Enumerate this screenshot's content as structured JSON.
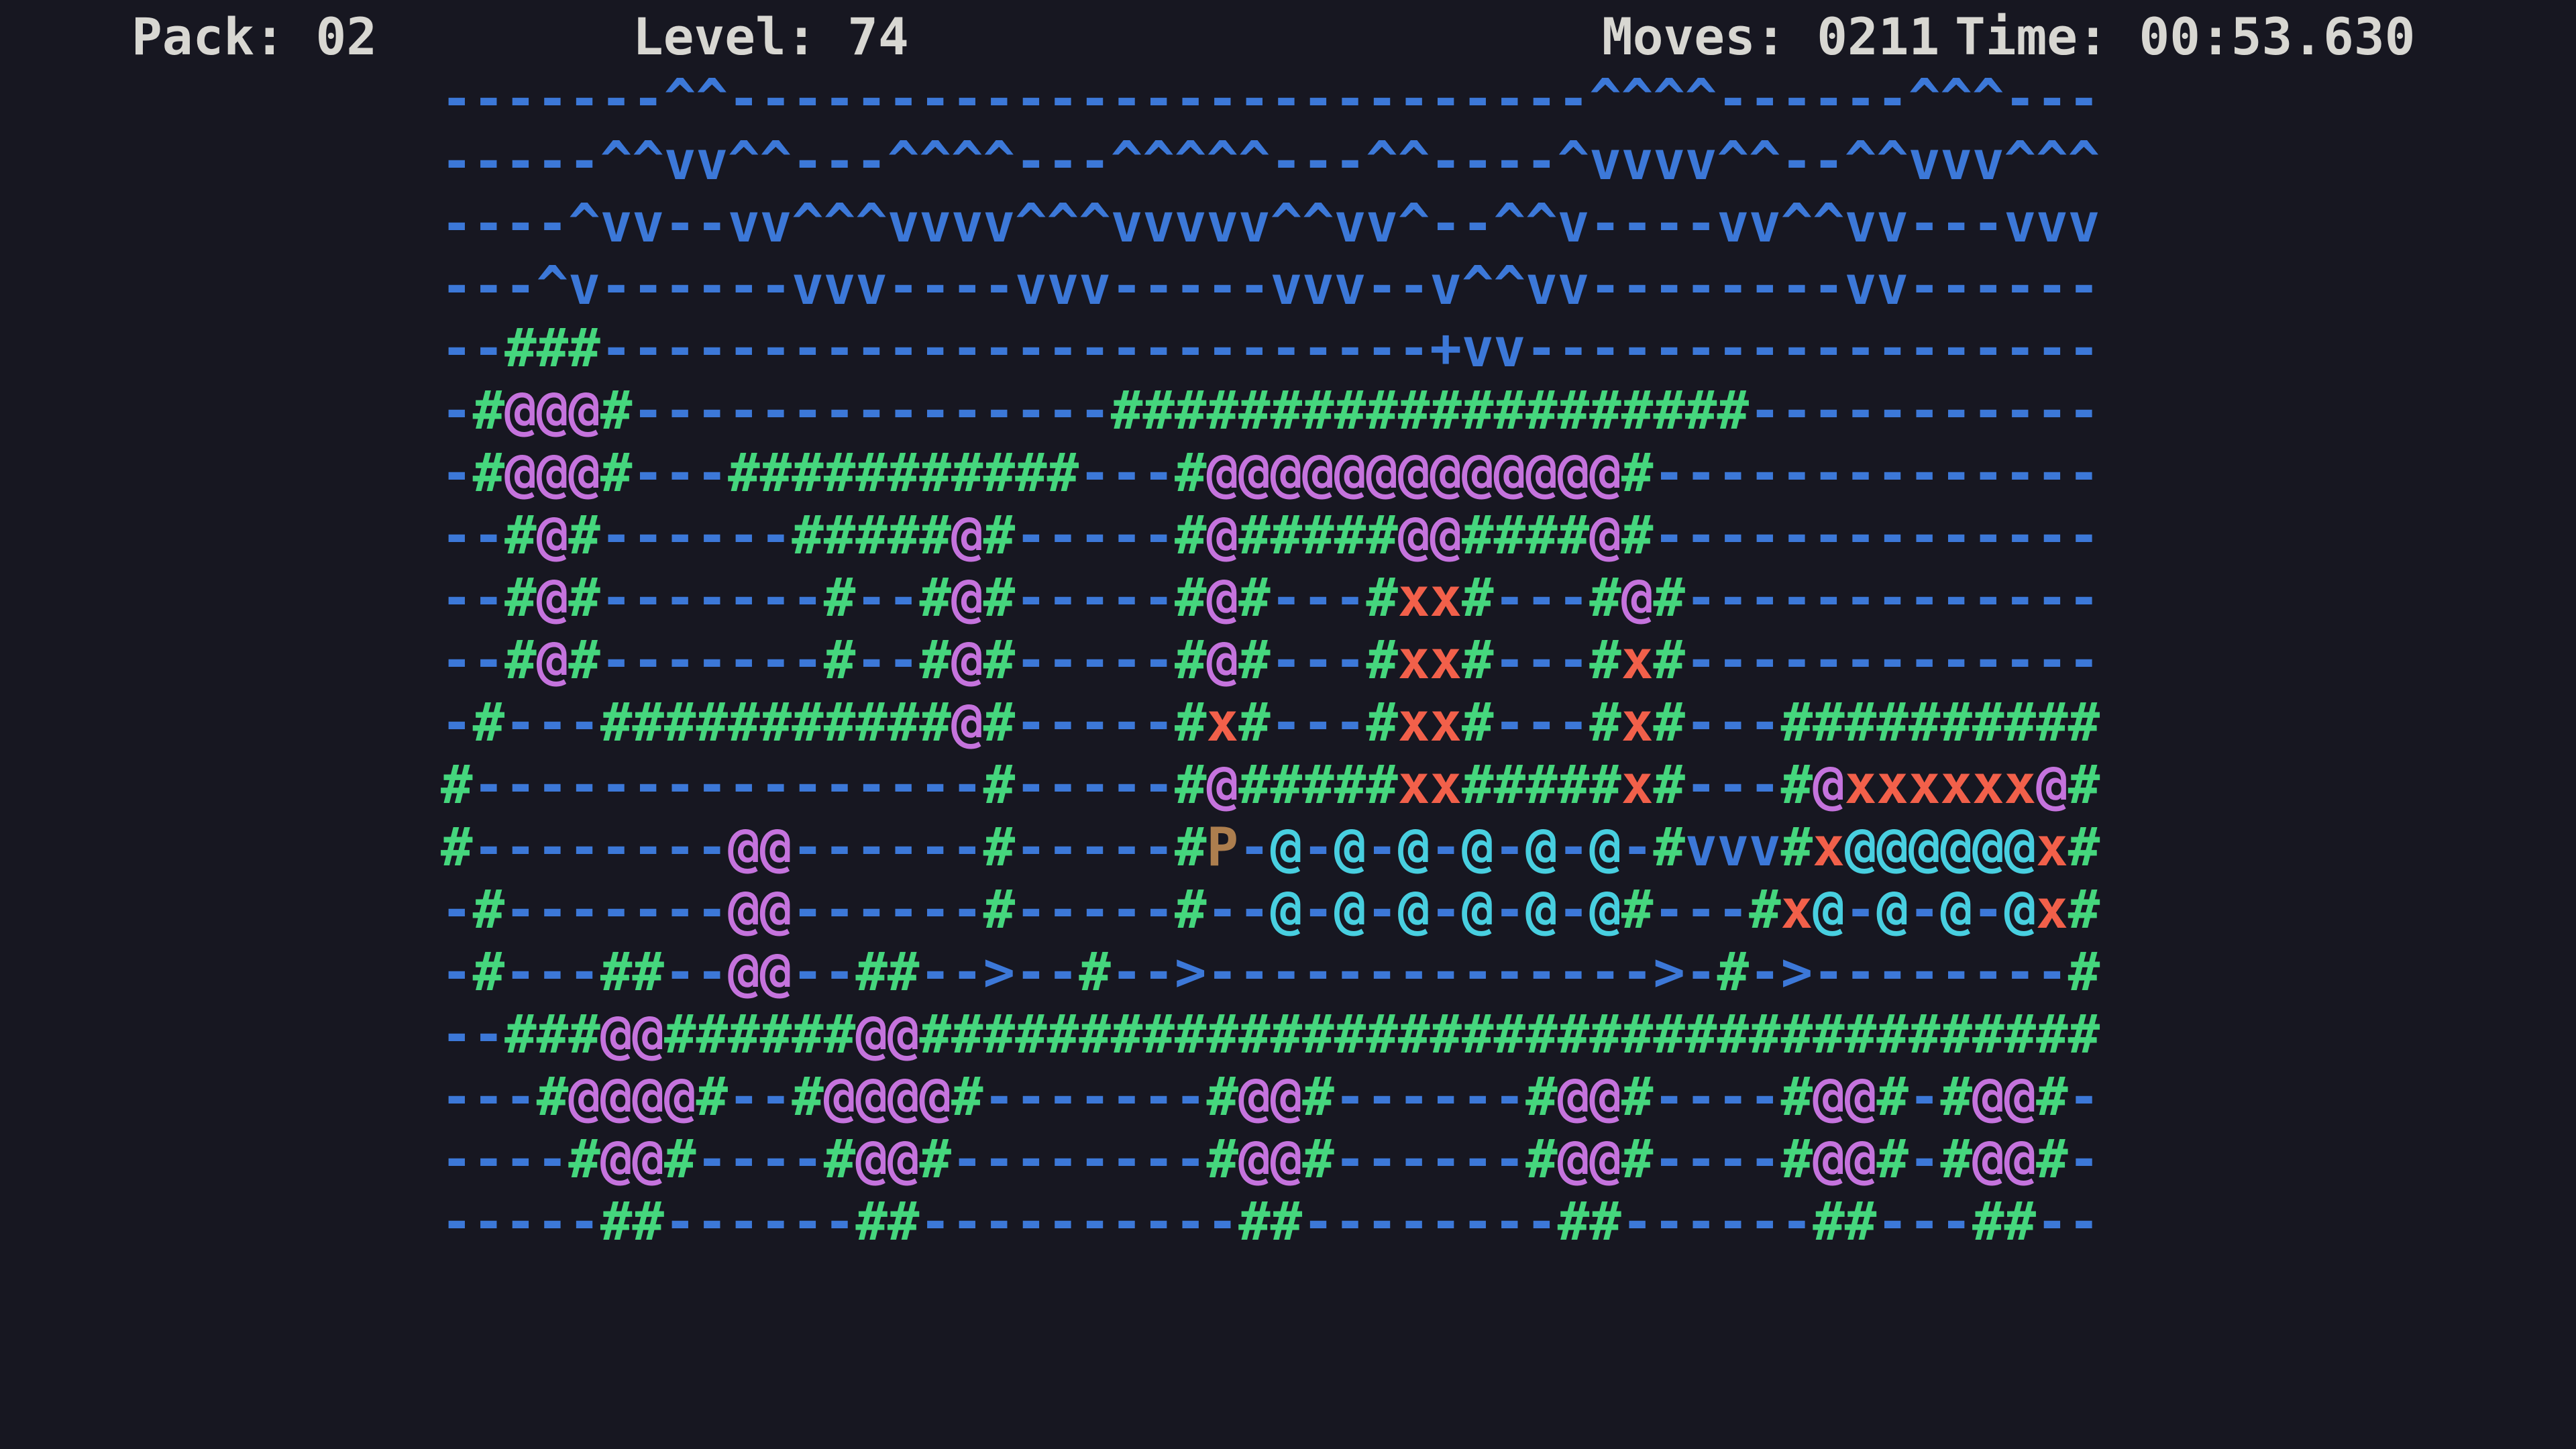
{
  "header": {
    "pack": "Pack: 02",
    "level": "Level: 74",
    "moves": "Moves: 0211",
    "time": "Time: 00:53.630"
  },
  "colors": {
    "background": "#171721",
    "blue": "#3c78d8",
    "green": "#45d67d",
    "purple": "#c573dd",
    "red": "#f2604a",
    "cyan": "#48cfe0",
    "tan": "#ad7e4e",
    "header_text": "#d8d7d2"
  },
  "icons": {
    "player": "P",
    "wall": "#",
    "block": "@",
    "hazard": "x",
    "arrow_right": ">",
    "wave_up": "^",
    "wave_down": "v",
    "water": "-",
    "plus": "+"
  },
  "grid": {
    "columns": 52,
    "rows": [
      [
        [
          "b",
          "-------^^---------------------------^^^^------^^^---"
        ]
      ],
      [
        [
          "b",
          "-----^^vv^^---^^^^---^^^^^---^^----^vvvv^^--^^vvv^^^"
        ]
      ],
      [
        [
          "b",
          "----^vv--vv^^^vvvv^^^vvvvv^^vv^--^^v----vv^^vv---vvv"
        ]
      ],
      [
        [
          "b",
          "---^v------vvv----vvv-----vvv--v^^vv--------vv------"
        ]
      ],
      [
        [
          "b",
          "--"
        ],
        [
          "g",
          "###"
        ],
        [
          "b",
          "--------------------------+vv------------------"
        ]
      ],
      [
        [
          "b",
          "-"
        ],
        [
          "g",
          "#"
        ],
        [
          "p",
          "@@@"
        ],
        [
          "g",
          "#"
        ],
        [
          "b",
          "---------------"
        ],
        [
          "g",
          "####################"
        ],
        [
          "b",
          "-----------"
        ]
      ],
      [
        [
          "b",
          "-"
        ],
        [
          "g",
          "#"
        ],
        [
          "p",
          "@@@"
        ],
        [
          "g",
          "#"
        ],
        [
          "b",
          "---"
        ],
        [
          "g",
          "###########"
        ],
        [
          "b",
          "---"
        ],
        [
          "g",
          "#"
        ],
        [
          "p",
          "@@@@@@@@@@@@@"
        ],
        [
          "g",
          "#"
        ],
        [
          "b",
          "--------------"
        ]
      ],
      [
        [
          "b",
          "--"
        ],
        [
          "g",
          "#"
        ],
        [
          "p",
          "@"
        ],
        [
          "g",
          "#"
        ],
        [
          "b",
          "------"
        ],
        [
          "g",
          "#####"
        ],
        [
          "p",
          "@"
        ],
        [
          "g",
          "#"
        ],
        [
          "b",
          "-----"
        ],
        [
          "g",
          "#"
        ],
        [
          "p",
          "@"
        ],
        [
          "g",
          "#####"
        ],
        [
          "p",
          "@@"
        ],
        [
          "g",
          "####"
        ],
        [
          "p",
          "@"
        ],
        [
          "g",
          "#"
        ],
        [
          "b",
          "--------------"
        ]
      ],
      [
        [
          "b",
          "--"
        ],
        [
          "g",
          "#"
        ],
        [
          "p",
          "@"
        ],
        [
          "g",
          "#"
        ],
        [
          "b",
          "-------"
        ],
        [
          "g",
          "#"
        ],
        [
          "b",
          "--"
        ],
        [
          "g",
          "#"
        ],
        [
          "p",
          "@"
        ],
        [
          "g",
          "#"
        ],
        [
          "b",
          "-----"
        ],
        [
          "g",
          "#"
        ],
        [
          "p",
          "@"
        ],
        [
          "g",
          "#"
        ],
        [
          "b",
          "---"
        ],
        [
          "g",
          "#"
        ],
        [
          "r",
          "xx"
        ],
        [
          "g",
          "#"
        ],
        [
          "b",
          "---"
        ],
        [
          "g",
          "#"
        ],
        [
          "p",
          "@"
        ],
        [
          "g",
          "#"
        ],
        [
          "b",
          "-------------"
        ]
      ],
      [
        [
          "b",
          "--"
        ],
        [
          "g",
          "#"
        ],
        [
          "p",
          "@"
        ],
        [
          "g",
          "#"
        ],
        [
          "b",
          "-------"
        ],
        [
          "g",
          "#"
        ],
        [
          "b",
          "--"
        ],
        [
          "g",
          "#"
        ],
        [
          "p",
          "@"
        ],
        [
          "g",
          "#"
        ],
        [
          "b",
          "-----"
        ],
        [
          "g",
          "#"
        ],
        [
          "p",
          "@"
        ],
        [
          "g",
          "#"
        ],
        [
          "b",
          "---"
        ],
        [
          "g",
          "#"
        ],
        [
          "r",
          "xx"
        ],
        [
          "g",
          "#"
        ],
        [
          "b",
          "---"
        ],
        [
          "g",
          "#"
        ],
        [
          "r",
          "x"
        ],
        [
          "g",
          "#"
        ],
        [
          "b",
          "-------------"
        ]
      ],
      [
        [
          "b",
          "-"
        ],
        [
          "g",
          "#"
        ],
        [
          "b",
          "---"
        ],
        [
          "g",
          "###########"
        ],
        [
          "p",
          "@"
        ],
        [
          "g",
          "#"
        ],
        [
          "b",
          "-----"
        ],
        [
          "g",
          "#"
        ],
        [
          "r",
          "x"
        ],
        [
          "g",
          "#"
        ],
        [
          "b",
          "---"
        ],
        [
          "g",
          "#"
        ],
        [
          "r",
          "xx"
        ],
        [
          "g",
          "#"
        ],
        [
          "b",
          "---"
        ],
        [
          "g",
          "#"
        ],
        [
          "r",
          "x"
        ],
        [
          "g",
          "#"
        ],
        [
          "b",
          "---"
        ],
        [
          "g",
          "##########"
        ]
      ],
      [
        [
          "g",
          "#"
        ],
        [
          "b",
          "----------------"
        ],
        [
          "g",
          "#"
        ],
        [
          "b",
          "-----"
        ],
        [
          "g",
          "#"
        ],
        [
          "p",
          "@"
        ],
        [
          "g",
          "#####"
        ],
        [
          "r",
          "xx"
        ],
        [
          "g",
          "#####"
        ],
        [
          "r",
          "x"
        ],
        [
          "g",
          "#"
        ],
        [
          "b",
          "---"
        ],
        [
          "g",
          "#"
        ],
        [
          "p",
          "@"
        ],
        [
          "r",
          "xxxxxx"
        ],
        [
          "p",
          "@"
        ],
        [
          "g",
          "#"
        ]
      ],
      [
        [
          "g",
          "#"
        ],
        [
          "b",
          "--------"
        ],
        [
          "p",
          "@@"
        ],
        [
          "b",
          "------"
        ],
        [
          "g",
          "#"
        ],
        [
          "b",
          "-----"
        ],
        [
          "g",
          "#"
        ],
        [
          "t",
          "P"
        ],
        [
          "b",
          "-"
        ],
        [
          "c",
          "@"
        ],
        [
          "b",
          "-"
        ],
        [
          "c",
          "@"
        ],
        [
          "b",
          "-"
        ],
        [
          "c",
          "@"
        ],
        [
          "b",
          "-"
        ],
        [
          "c",
          "@"
        ],
        [
          "b",
          "-"
        ],
        [
          "c",
          "@"
        ],
        [
          "b",
          "-"
        ],
        [
          "c",
          "@"
        ],
        [
          "b",
          "-"
        ],
        [
          "g",
          "#"
        ],
        [
          "b",
          "vvv"
        ],
        [
          "g",
          "#"
        ],
        [
          "r",
          "x"
        ],
        [
          "c",
          "@@@@@@"
        ],
        [
          "r",
          "x"
        ],
        [
          "g",
          "#"
        ]
      ],
      [
        [
          "b",
          "-"
        ],
        [
          "g",
          "#"
        ],
        [
          "b",
          "-------"
        ],
        [
          "p",
          "@@"
        ],
        [
          "b",
          "------"
        ],
        [
          "g",
          "#"
        ],
        [
          "b",
          "-----"
        ],
        [
          "g",
          "#"
        ],
        [
          "b",
          "--"
        ],
        [
          "c",
          "@"
        ],
        [
          "b",
          "-"
        ],
        [
          "c",
          "@"
        ],
        [
          "b",
          "-"
        ],
        [
          "c",
          "@"
        ],
        [
          "b",
          "-"
        ],
        [
          "c",
          "@"
        ],
        [
          "b",
          "-"
        ],
        [
          "c",
          "@"
        ],
        [
          "b",
          "-"
        ],
        [
          "c",
          "@"
        ],
        [
          "g",
          "#"
        ],
        [
          "b",
          "---"
        ],
        [
          "g",
          "#"
        ],
        [
          "r",
          "x"
        ],
        [
          "c",
          "@"
        ],
        [
          "b",
          "-"
        ],
        [
          "c",
          "@"
        ],
        [
          "b",
          "-"
        ],
        [
          "c",
          "@"
        ],
        [
          "b",
          "-"
        ],
        [
          "c",
          "@"
        ],
        [
          "r",
          "x"
        ],
        [
          "g",
          "#"
        ]
      ],
      [
        [
          "b",
          "-"
        ],
        [
          "g",
          "#"
        ],
        [
          "b",
          "---"
        ],
        [
          "g",
          "##"
        ],
        [
          "b",
          "--"
        ],
        [
          "p",
          "@@"
        ],
        [
          "b",
          "--"
        ],
        [
          "g",
          "##"
        ],
        [
          "b",
          "-->--"
        ],
        [
          "g",
          "#"
        ],
        [
          "b",
          "-->-------------->-"
        ],
        [
          "g",
          "#"
        ],
        [
          "b",
          "->--------"
        ],
        [
          "g",
          "#"
        ]
      ],
      [
        [
          "b",
          "--"
        ],
        [
          "g",
          "###"
        ],
        [
          "p",
          "@@"
        ],
        [
          "g",
          "######"
        ],
        [
          "p",
          "@@"
        ],
        [
          "g",
          "#####################################"
        ]
      ],
      [
        [
          "b",
          "---"
        ],
        [
          "g",
          "#"
        ],
        [
          "p",
          "@@@@"
        ],
        [
          "g",
          "#"
        ],
        [
          "b",
          "--"
        ],
        [
          "g",
          "#"
        ],
        [
          "p",
          "@@@@"
        ],
        [
          "g",
          "#"
        ],
        [
          "b",
          "-------"
        ],
        [
          "g",
          "#"
        ],
        [
          "p",
          "@@"
        ],
        [
          "g",
          "#"
        ],
        [
          "b",
          "------"
        ],
        [
          "g",
          "#"
        ],
        [
          "p",
          "@@"
        ],
        [
          "g",
          "#"
        ],
        [
          "b",
          "----"
        ],
        [
          "g",
          "#"
        ],
        [
          "p",
          "@@"
        ],
        [
          "g",
          "#"
        ],
        [
          "b",
          "-"
        ],
        [
          "g",
          "#"
        ],
        [
          "p",
          "@@"
        ],
        [
          "g",
          "#"
        ],
        [
          "b",
          "-"
        ]
      ],
      [
        [
          "b",
          "----"
        ],
        [
          "g",
          "#"
        ],
        [
          "p",
          "@@"
        ],
        [
          "g",
          "#"
        ],
        [
          "b",
          "----"
        ],
        [
          "g",
          "#"
        ],
        [
          "p",
          "@@"
        ],
        [
          "g",
          "#"
        ],
        [
          "b",
          "--------"
        ],
        [
          "g",
          "#"
        ],
        [
          "p",
          "@@"
        ],
        [
          "g",
          "#"
        ],
        [
          "b",
          "------"
        ],
        [
          "g",
          "#"
        ],
        [
          "p",
          "@@"
        ],
        [
          "g",
          "#"
        ],
        [
          "b",
          "----"
        ],
        [
          "g",
          "#"
        ],
        [
          "p",
          "@@"
        ],
        [
          "g",
          "#"
        ],
        [
          "b",
          "-"
        ],
        [
          "g",
          "#"
        ],
        [
          "p",
          "@@"
        ],
        [
          "g",
          "#"
        ],
        [
          "b",
          "-"
        ]
      ],
      [
        [
          "b",
          "-----"
        ],
        [
          "g",
          "##"
        ],
        [
          "b",
          "------"
        ],
        [
          "g",
          "##"
        ],
        [
          "b",
          "----------"
        ],
        [
          "g",
          "##"
        ],
        [
          "b",
          "--------"
        ],
        [
          "g",
          "##"
        ],
        [
          "b",
          "------"
        ],
        [
          "g",
          "##"
        ],
        [
          "b",
          "---"
        ],
        [
          "g",
          "##"
        ],
        [
          "b",
          "--"
        ]
      ]
    ]
  }
}
